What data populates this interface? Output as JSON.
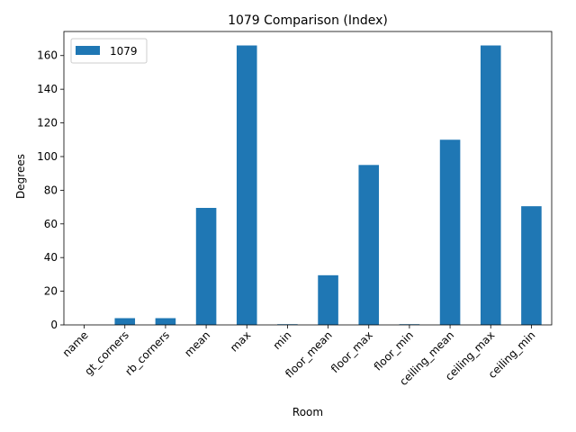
{
  "chart_data": {
    "type": "bar",
    "title": "1079 Comparison (Index)",
    "xlabel": "Room",
    "ylabel": "Degrees",
    "categories": [
      "name",
      "gt_corners",
      "rb_corners",
      "mean",
      "max",
      "min",
      "floor_mean",
      "floor_max",
      "floor_min",
      "ceiling_mean",
      "ceiling_max",
      "ceiling_min"
    ],
    "series": [
      {
        "name": "1079",
        "values": [
          0,
          4,
          4,
          69.5,
          166,
          0.4,
          29.5,
          95,
          0.4,
          110,
          166,
          70.5
        ],
        "color": "#1f77b4"
      }
    ],
    "ylim": [
      0,
      174.3
    ],
    "yticks": [
      0,
      20,
      40,
      60,
      80,
      100,
      120,
      140,
      160
    ],
    "grid": false,
    "legend": "top-left"
  }
}
